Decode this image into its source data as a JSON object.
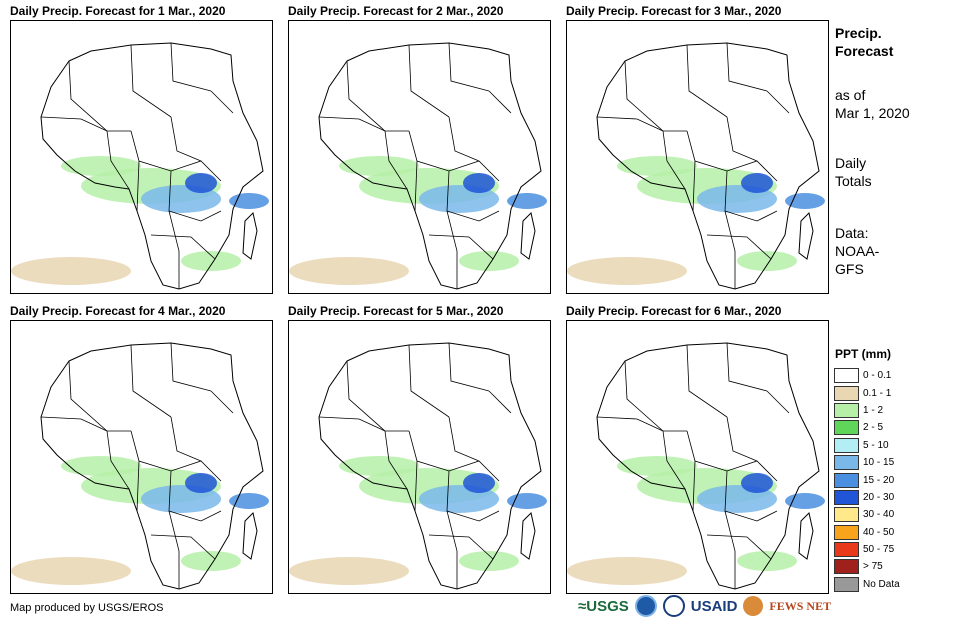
{
  "panels": [
    {
      "title": "Daily Precip. Forecast for 1 Mar., 2020"
    },
    {
      "title": "Daily Precip. Forecast for 2 Mar., 2020"
    },
    {
      "title": "Daily Precip. Forecast for 3 Mar., 2020"
    },
    {
      "title": "Daily Precip. Forecast for 4 Mar., 2020"
    },
    {
      "title": "Daily Precip. Forecast for 5 Mar., 2020"
    },
    {
      "title": "Daily Precip. Forecast for 6 Mar., 2020"
    }
  ],
  "side": {
    "heading_line1": "Precip.",
    "heading_line2": "Forecast",
    "asof_line1": "as of",
    "asof_line2": "Mar 1, 2020",
    "totals_line1": "Daily",
    "totals_line2": "Totals",
    "data_line1": "Data:",
    "data_line2": "NOAA-",
    "data_line3": "GFS"
  },
  "legend": {
    "title": "PPT (mm)",
    "items": [
      {
        "label": "0 - 0.1",
        "color": "#ffffff"
      },
      {
        "label": "0.1 - 1",
        "color": "#e9d6b3"
      },
      {
        "label": "1 - 2",
        "color": "#b6f0a8"
      },
      {
        "label": "2 - 5",
        "color": "#5fd65a"
      },
      {
        "label": "5 - 10",
        "color": "#b4eef5"
      },
      {
        "label": "10 - 15",
        "color": "#7ab8ea"
      },
      {
        "label": "15 - 20",
        "color": "#4a8fe0"
      },
      {
        "label": "20 - 30",
        "color": "#1f55d6"
      },
      {
        "label": "30 - 40",
        "color": "#ffe98a"
      },
      {
        "label": "40 - 50",
        "color": "#f7a31c"
      },
      {
        "label": "50 - 75",
        "color": "#e8391a"
      },
      {
        "label": "> 75",
        "color": "#a0201c"
      },
      {
        "label": "No Data",
        "color": "#999999"
      }
    ]
  },
  "footer": {
    "credit": "Map produced by USGS/EROS"
  },
  "logos": {
    "usgs": "≈USGS",
    "usaid": "USAID",
    "fews": "FEWS NET"
  }
}
